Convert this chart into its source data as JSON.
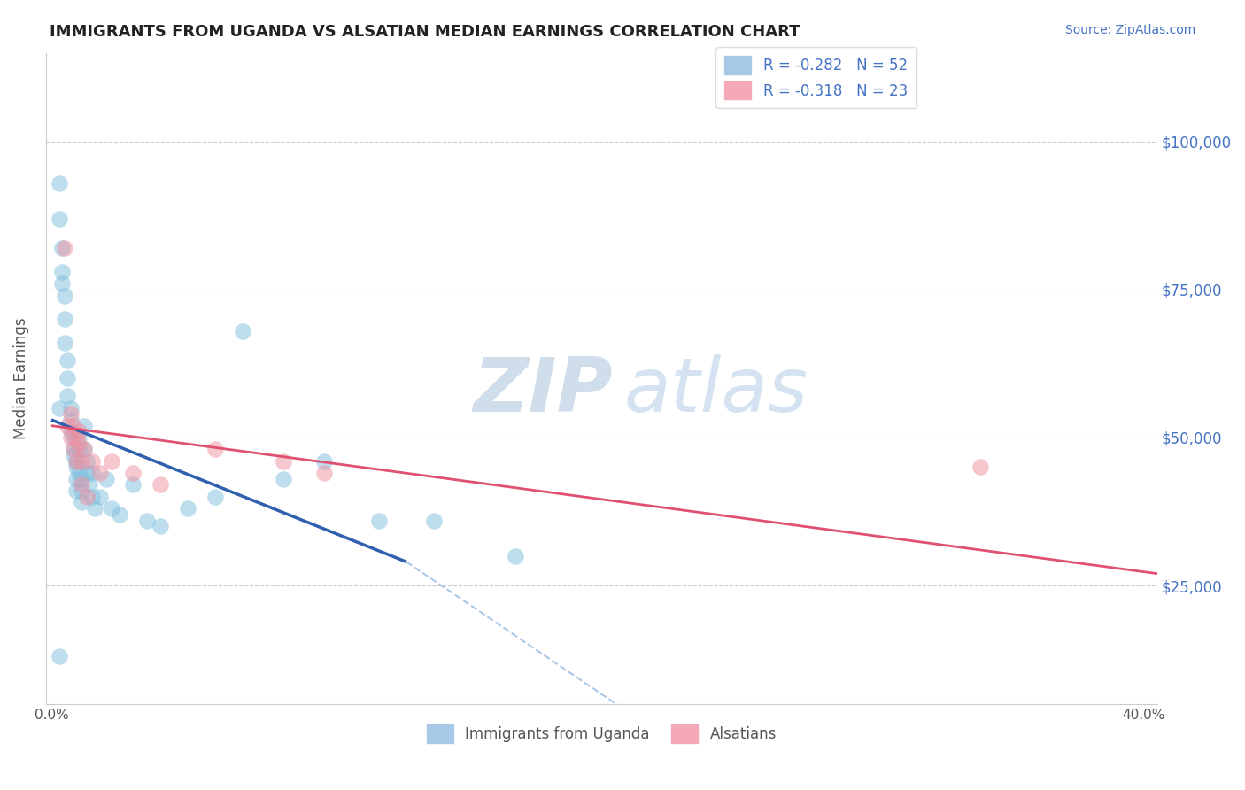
{
  "title": "IMMIGRANTS FROM UGANDA VS ALSATIAN MEDIAN EARNINGS CORRELATION CHART",
  "source": "Source: ZipAtlas.com",
  "ylabel": "Median Earnings",
  "xlim": [
    -0.002,
    0.405
  ],
  "ylim": [
    5000,
    115000
  ],
  "yticks": [
    25000,
    50000,
    75000,
    100000
  ],
  "ytick_labels": [
    "$25,000",
    "$50,000",
    "$75,000",
    "$100,000"
  ],
  "xticks": [
    0.0,
    0.4
  ],
  "xtick_labels": [
    "0.0%",
    "40.0%"
  ],
  "blue_scatter_x": [
    0.003,
    0.003,
    0.004,
    0.004,
    0.005,
    0.005,
    0.005,
    0.006,
    0.006,
    0.006,
    0.007,
    0.007,
    0.007,
    0.008,
    0.008,
    0.008,
    0.009,
    0.009,
    0.009,
    0.009,
    0.01,
    0.01,
    0.01,
    0.011,
    0.011,
    0.011,
    0.012,
    0.012,
    0.013,
    0.013,
    0.014,
    0.015,
    0.015,
    0.016,
    0.018,
    0.02,
    0.022,
    0.025,
    0.03,
    0.035,
    0.04,
    0.05,
    0.06,
    0.07,
    0.085,
    0.1,
    0.12,
    0.003,
    0.004,
    0.14,
    0.003,
    0.17
  ],
  "blue_scatter_y": [
    93000,
    87000,
    82000,
    76000,
    74000,
    70000,
    66000,
    63000,
    60000,
    57000,
    55000,
    53000,
    51000,
    50000,
    48000,
    47000,
    46000,
    45000,
    43000,
    41000,
    50000,
    48000,
    44000,
    43000,
    41000,
    39000,
    52000,
    48000,
    46000,
    44000,
    42000,
    44000,
    40000,
    38000,
    40000,
    43000,
    38000,
    37000,
    42000,
    36000,
    35000,
    38000,
    40000,
    68000,
    43000,
    46000,
    36000,
    13000,
    78000,
    36000,
    55000,
    30000
  ],
  "pink_scatter_x": [
    0.005,
    0.006,
    0.007,
    0.007,
    0.008,
    0.008,
    0.009,
    0.009,
    0.01,
    0.01,
    0.011,
    0.011,
    0.012,
    0.013,
    0.015,
    0.018,
    0.022,
    0.03,
    0.04,
    0.06,
    0.085,
    0.1,
    0.34
  ],
  "pink_scatter_y": [
    82000,
    52000,
    54000,
    50000,
    52000,
    48000,
    50000,
    46000,
    51000,
    49000,
    46000,
    42000,
    48000,
    40000,
    46000,
    44000,
    46000,
    44000,
    42000,
    48000,
    46000,
    44000,
    45000
  ],
  "blue_line_x": [
    0.0,
    0.13
  ],
  "blue_line_y": [
    53000,
    29000
  ],
  "pink_line_x": [
    0.0,
    0.405
  ],
  "pink_line_y": [
    52000,
    27000
  ],
  "dashed_line_x": [
    0.13,
    0.405
  ],
  "dashed_line_y": [
    29000,
    -57000
  ],
  "watermark_zip": "ZIP",
  "watermark_atlas": "atlas",
  "bg_color": "#ffffff",
  "scatter_alpha": 0.5,
  "scatter_size": 180,
  "blue_color": "#7fbfdf",
  "pink_color": "#f090a0",
  "grid_color": "#cccccc",
  "blue_line_color": "#3060b0",
  "pink_line_color": "#e05070",
  "dashed_line_color": "#aac8e8"
}
